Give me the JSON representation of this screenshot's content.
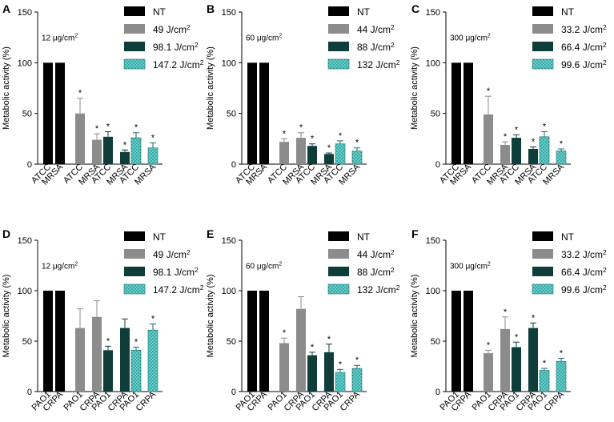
{
  "colors": {
    "nt": "#000000",
    "d1": "#8c8c8c",
    "d2": "#0f3d3a",
    "d3": "#5fd0cc",
    "dot": "#1f6b68"
  },
  "chart_data": [
    {
      "type": "bar",
      "panel": "A",
      "concentration": "12 μg/cm²",
      "ylabel": "Metabolic activity (%)",
      "ylim": [
        0,
        150
      ],
      "yticks": [
        0,
        50,
        100,
        150
      ],
      "legend": [
        "NT",
        "49 J/cm²",
        "98.1 J/cm²",
        "147.2 J/cm²"
      ],
      "categories": [
        "ATCC",
        "MRSA",
        "ATCC",
        "MRSA",
        "ATCC",
        "MRSA",
        "ATCC",
        "MRSA"
      ],
      "groups": [
        0,
        0,
        1,
        1,
        2,
        2,
        3,
        3
      ],
      "values": [
        100,
        100,
        50,
        24,
        27,
        12,
        26,
        16
      ],
      "errors": [
        0,
        0,
        15,
        6,
        5,
        2,
        5,
        5
      ],
      "star": [
        false,
        false,
        true,
        true,
        true,
        true,
        true,
        true
      ]
    },
    {
      "type": "bar",
      "panel": "B",
      "concentration": "60 μg/cm²",
      "ylabel": "Metabolic activity (%)",
      "ylim": [
        0,
        150
      ],
      "yticks": [
        0,
        50,
        100,
        150
      ],
      "legend": [
        "NT",
        "44 J/cm²",
        "88 J/cm²",
        "132 J/cm²"
      ],
      "categories": [
        "ATCC",
        "MRSA",
        "ATCC",
        "MRSA",
        "ATCC",
        "MRSA",
        "ATCC",
        "MRSA"
      ],
      "groups": [
        0,
        0,
        1,
        1,
        2,
        2,
        3,
        3
      ],
      "values": [
        100,
        100,
        22,
        26,
        18,
        10,
        20,
        13
      ],
      "errors": [
        0,
        0,
        3,
        5,
        2,
        1,
        3,
        3
      ],
      "star": [
        false,
        false,
        true,
        true,
        true,
        true,
        true,
        true
      ]
    },
    {
      "type": "bar",
      "panel": "C",
      "concentration": "300 μg/cm²",
      "ylabel": "Metabolic activity (%)",
      "ylim": [
        0,
        150
      ],
      "yticks": [
        0,
        50,
        100,
        150
      ],
      "legend": [
        "NT",
        "33.2 J/cm²",
        "66.4 J/cm²",
        "99.6 J/cm²"
      ],
      "categories": [
        "ATCC",
        "MRSA",
        "ATCC",
        "MRSA",
        "ATCC",
        "MRSA",
        "ATCC",
        "MRSA"
      ],
      "groups": [
        0,
        0,
        1,
        1,
        2,
        2,
        3,
        3
      ],
      "values": [
        100,
        100,
        49,
        19,
        26,
        15,
        27,
        13
      ],
      "errors": [
        0,
        0,
        18,
        3,
        3,
        2,
        5,
        2
      ],
      "star": [
        false,
        false,
        true,
        true,
        true,
        true,
        true,
        true
      ]
    },
    {
      "type": "bar",
      "panel": "D",
      "concentration": "12 μg/cm²",
      "ylabel": "Metabolic activity (%)",
      "ylim": [
        0,
        150
      ],
      "yticks": [
        0,
        50,
        100,
        150
      ],
      "legend": [
        "NT",
        "49 J/cm²",
        "98.1 J/cm²",
        "147.2 J/cm²"
      ],
      "categories": [
        "PAO1",
        "CRPA",
        "PAO1",
        "CRPA",
        "PAO1",
        "CRPA",
        "PAO1",
        "CRPA"
      ],
      "groups": [
        0,
        0,
        1,
        1,
        2,
        2,
        3,
        3
      ],
      "values": [
        100,
        100,
        63,
        74,
        41,
        63,
        41,
        61
      ],
      "errors": [
        0,
        0,
        19,
        16,
        4,
        9,
        3,
        6
      ],
      "star": [
        false,
        false,
        false,
        false,
        true,
        false,
        true,
        true
      ]
    },
    {
      "type": "bar",
      "panel": "E",
      "concentration": "60 μg/cm²",
      "ylabel": "Metabolic activity (%)",
      "ylim": [
        0,
        150
      ],
      "yticks": [
        0,
        50,
        100,
        150
      ],
      "legend": [
        "NT",
        "44 J/cm²",
        "88 J/cm²",
        "132 J/cm²"
      ],
      "categories": [
        "PAO1",
        "CRPA",
        "PAO1",
        "CRPA",
        "PAO1",
        "CRPA",
        "PAO1",
        "CRPA"
      ],
      "groups": [
        0,
        0,
        1,
        1,
        2,
        2,
        3,
        3
      ],
      "values": [
        100,
        100,
        48,
        82,
        36,
        39,
        19,
        23
      ],
      "errors": [
        0,
        0,
        5,
        12,
        3,
        8,
        3,
        3
      ],
      "star": [
        false,
        false,
        true,
        false,
        true,
        true,
        true,
        true
      ]
    },
    {
      "type": "bar",
      "panel": "F",
      "concentration": "300 μg/cm²",
      "ylabel": "Metabolic activity (%)",
      "ylim": [
        0,
        150
      ],
      "yticks": [
        0,
        50,
        100,
        150
      ],
      "legend": [
        "NT",
        "33.2 J/cm²",
        "66.4 J/cm²",
        "99.6 J/cm²"
      ],
      "categories": [
        "PAO1",
        "CRPA",
        "PAO1",
        "CRPA",
        "PAO1",
        "CRPA",
        "PAO1",
        "CRPA"
      ],
      "groups": [
        0,
        0,
        1,
        1,
        2,
        2,
        3,
        3
      ],
      "values": [
        100,
        100,
        38,
        62,
        44,
        63,
        21,
        30
      ],
      "errors": [
        0,
        0,
        3,
        12,
        5,
        5,
        2,
        3
      ],
      "star": [
        false,
        false,
        true,
        true,
        true,
        true,
        true,
        true
      ]
    }
  ]
}
